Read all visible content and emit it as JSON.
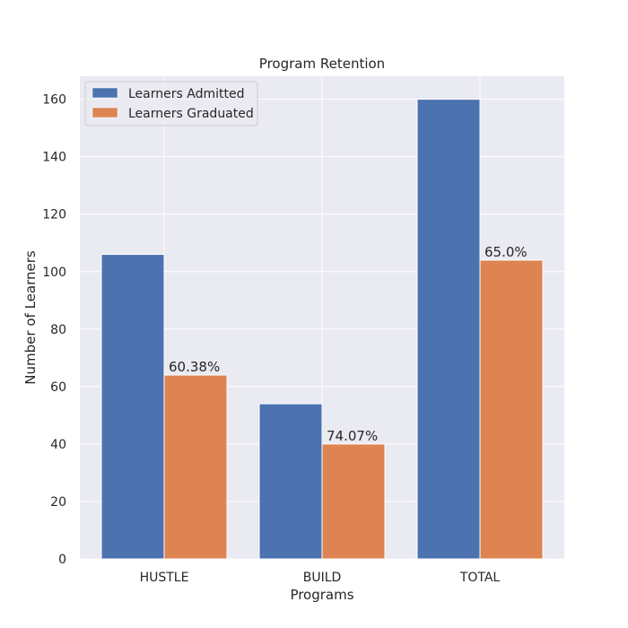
{
  "chart_data": {
    "type": "bar",
    "title": "Program Retention",
    "xlabel": "Programs",
    "ylabel": "Number of Learners",
    "categories": [
      "HUSTLE",
      "BUILD",
      "TOTAL"
    ],
    "series": [
      {
        "name": "Learners Admitted",
        "values": [
          106,
          54,
          160
        ],
        "color": "#4c72b0"
      },
      {
        "name": "Learners Graduated",
        "values": [
          64,
          40,
          104
        ],
        "color": "#dd8452",
        "data_labels": [
          "60.38%",
          "74.07%",
          "65.0%"
        ]
      }
    ],
    "ylim": [
      0,
      168
    ],
    "yticks": [
      0,
      20,
      40,
      60,
      80,
      100,
      120,
      140,
      160
    ],
    "grid": true,
    "legend": "top-left",
    "background": "#eaeaf2"
  }
}
